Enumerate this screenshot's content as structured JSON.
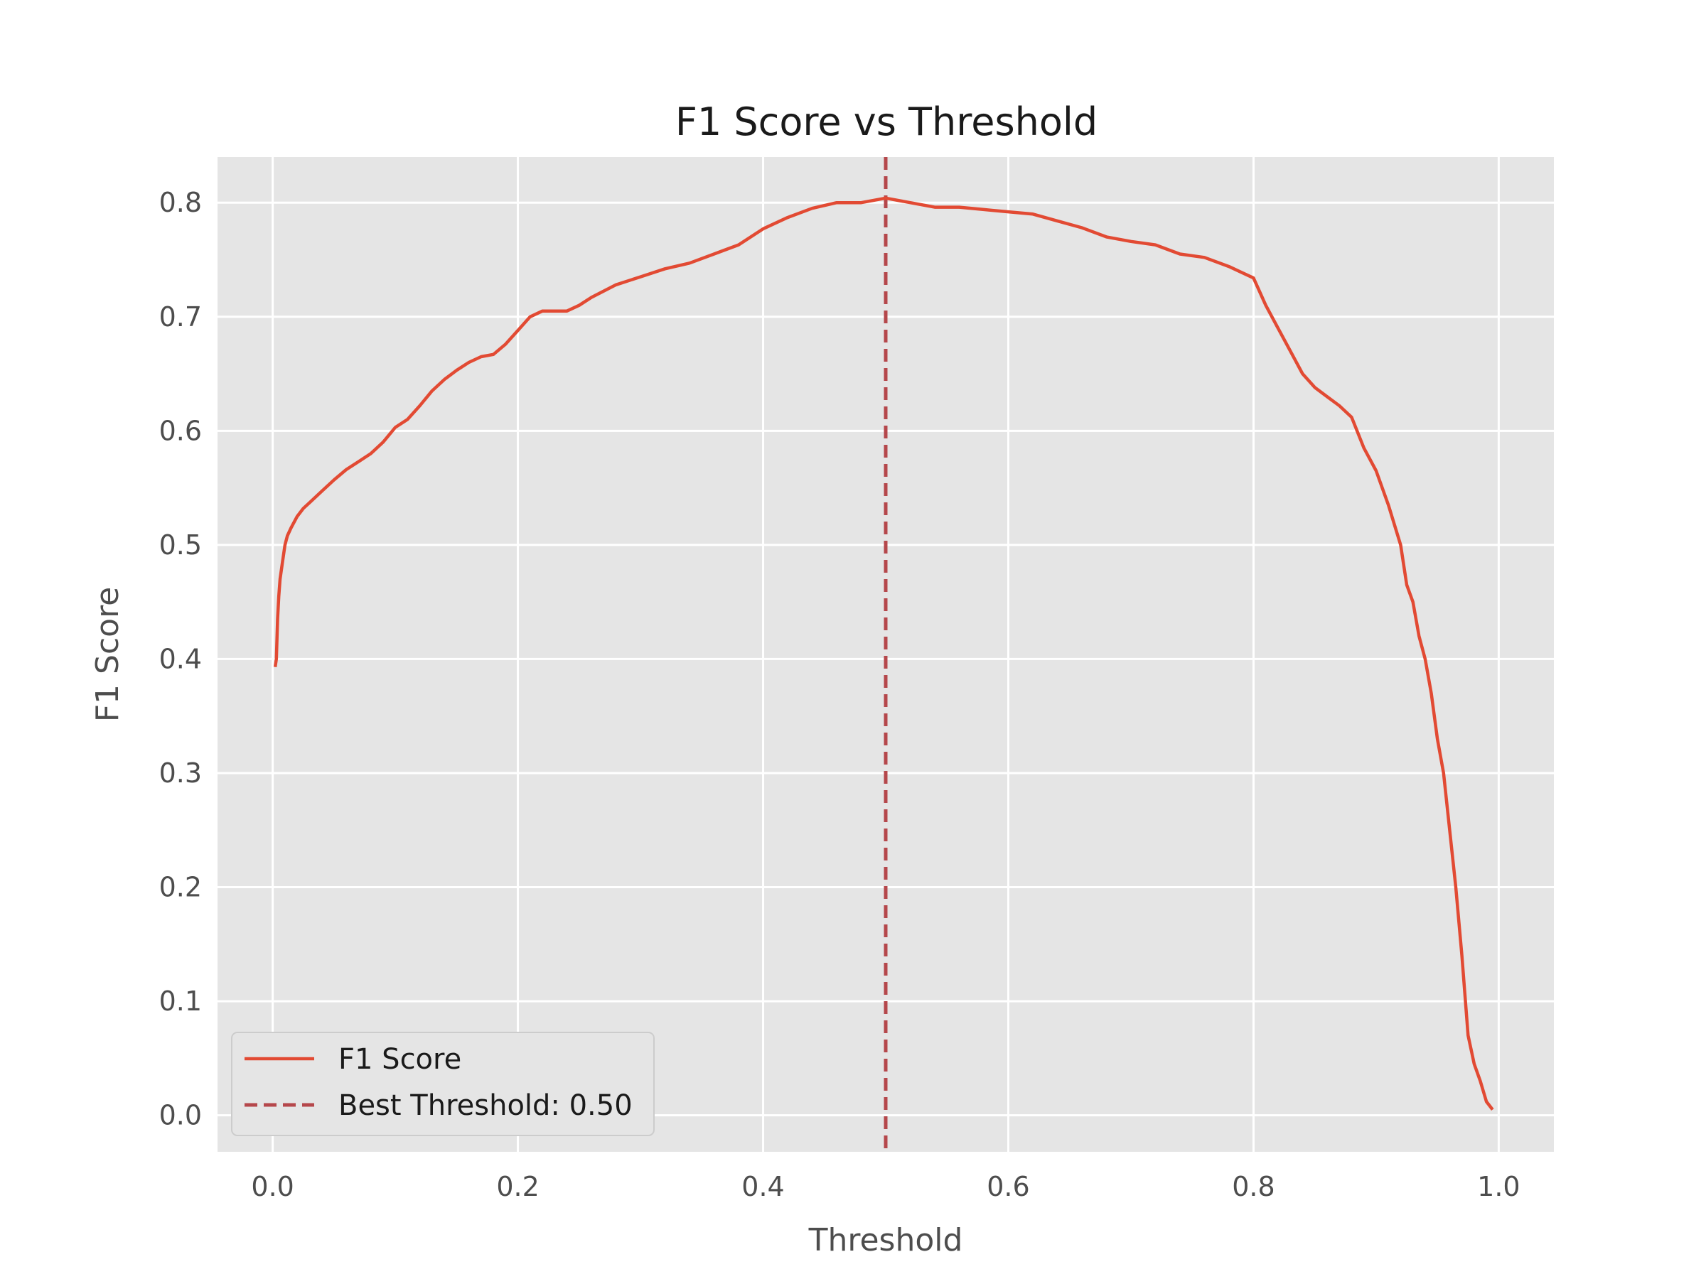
{
  "chart_data": {
    "type": "line",
    "title": "F1 Score vs Threshold",
    "xlabel": "Threshold",
    "ylabel": "F1 Score",
    "xlim": [
      -0.045,
      1.045
    ],
    "ylim": [
      -0.032,
      0.84
    ],
    "x_ticks": [
      "0.0",
      "0.2",
      "0.4",
      "0.6",
      "0.8",
      "1.0"
    ],
    "y_ticks": [
      "0.0",
      "0.1",
      "0.2",
      "0.3",
      "0.4",
      "0.5",
      "0.6",
      "0.7",
      "0.8"
    ],
    "grid": true,
    "legend": "lower-left",
    "series": [
      {
        "name": "F1 Score",
        "color": "#e24a33",
        "style": "solid",
        "x": [
          0.002,
          0.003,
          0.004,
          0.005,
          0.006,
          0.008,
          0.01,
          0.012,
          0.015,
          0.02,
          0.025,
          0.03,
          0.04,
          0.05,
          0.06,
          0.07,
          0.08,
          0.09,
          0.1,
          0.11,
          0.12,
          0.13,
          0.14,
          0.15,
          0.16,
          0.17,
          0.18,
          0.19,
          0.2,
          0.21,
          0.22,
          0.23,
          0.24,
          0.25,
          0.26,
          0.28,
          0.3,
          0.32,
          0.34,
          0.36,
          0.38,
          0.4,
          0.42,
          0.44,
          0.46,
          0.48,
          0.5,
          0.52,
          0.54,
          0.56,
          0.58,
          0.6,
          0.62,
          0.64,
          0.66,
          0.68,
          0.7,
          0.72,
          0.74,
          0.76,
          0.78,
          0.8,
          0.81,
          0.82,
          0.83,
          0.84,
          0.85,
          0.86,
          0.87,
          0.88,
          0.89,
          0.9,
          0.91,
          0.92,
          0.925,
          0.93,
          0.935,
          0.94,
          0.945,
          0.95,
          0.955,
          0.96,
          0.965,
          0.97,
          0.975,
          0.98,
          0.985,
          0.99,
          0.995
        ],
        "y": [
          0.393,
          0.4,
          0.435,
          0.455,
          0.47,
          0.485,
          0.5,
          0.508,
          0.515,
          0.525,
          0.532,
          0.537,
          0.547,
          0.557,
          0.566,
          0.573,
          0.58,
          0.59,
          0.603,
          0.61,
          0.622,
          0.635,
          0.645,
          0.653,
          0.66,
          0.665,
          0.667,
          0.676,
          0.688,
          0.7,
          0.705,
          0.705,
          0.705,
          0.71,
          0.717,
          0.728,
          0.735,
          0.742,
          0.747,
          0.755,
          0.763,
          0.777,
          0.787,
          0.795,
          0.8,
          0.8,
          0.804,
          0.8,
          0.796,
          0.796,
          0.794,
          0.792,
          0.79,
          0.784,
          0.778,
          0.77,
          0.766,
          0.763,
          0.755,
          0.752,
          0.744,
          0.734,
          0.71,
          0.69,
          0.67,
          0.65,
          0.638,
          0.63,
          0.622,
          0.612,
          0.585,
          0.565,
          0.535,
          0.5,
          0.465,
          0.45,
          0.42,
          0.4,
          0.37,
          0.33,
          0.3,
          0.25,
          0.2,
          0.14,
          0.07,
          0.045,
          0.03,
          0.012,
          0.005
        ]
      },
      {
        "name": "Best Threshold: 0.50",
        "color": "#b5474b",
        "style": "dashed",
        "vline_x": 0.5
      }
    ]
  }
}
